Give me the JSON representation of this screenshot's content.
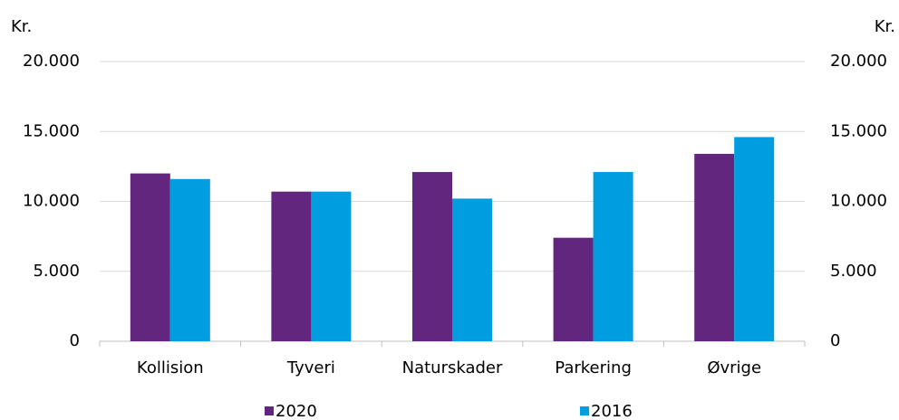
{
  "chart_data": {
    "type": "bar",
    "y_label": "Kr.",
    "y2_label": "Kr.",
    "categories": [
      "Kollision",
      "Tyveri",
      "Naturskader",
      "Parkering",
      "Øvrige"
    ],
    "series": [
      {
        "name": "2020",
        "color": "#62267f",
        "values": [
          12000,
          10700,
          12100,
          7400,
          13400
        ]
      },
      {
        "name": "2016",
        "color": "#009ee0",
        "values": [
          11600,
          10700,
          10200,
          12100,
          14600
        ]
      }
    ],
    "ylim": [
      0,
      20000
    ],
    "yticks": [
      0,
      {
        "value": 5000,
        "label": "5.000"
      },
      {
        "value": 10000,
        "label": "10.000"
      },
      {
        "value": 15000,
        "label": "15.000"
      },
      {
        "value": 20000,
        "label": "20.000"
      }
    ],
    "y2lim": [
      0,
      20000
    ],
    "y2ticks": [
      0,
      {
        "value": 5000,
        "label": "5.000"
      },
      {
        "value": 10000,
        "label": "10.000"
      },
      {
        "value": 15000,
        "label": "15.000"
      },
      {
        "value": 20000,
        "label": "20.000"
      }
    ],
    "grid": true,
    "legend": "bottom"
  }
}
